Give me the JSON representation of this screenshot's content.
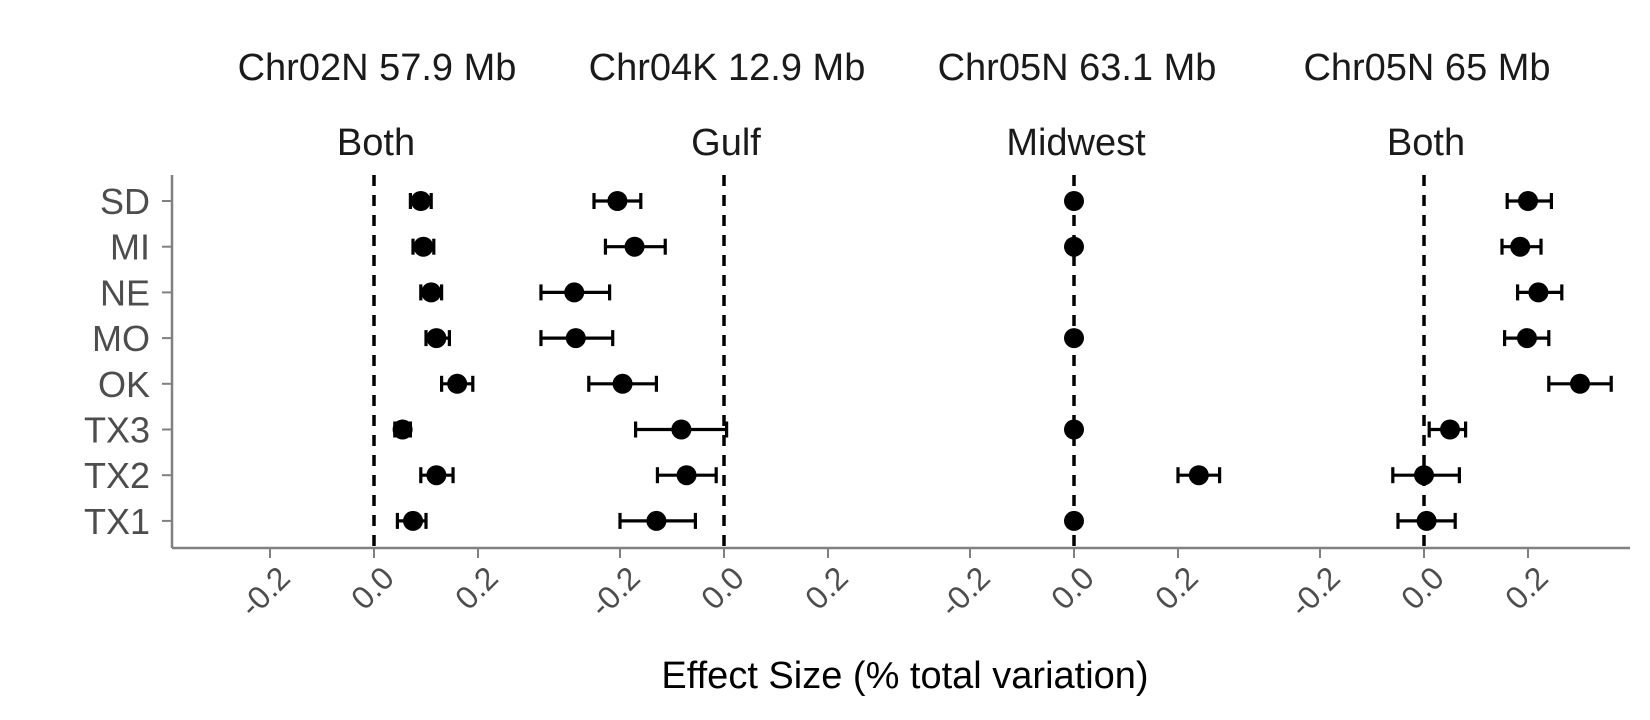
{
  "chart_data": {
    "type": "scatter",
    "subtype": "dot-and-errorbar facets",
    "xlabel": "Effect Size (% total variation)",
    "rows": [
      "SD",
      "MI",
      "NE",
      "MO",
      "OK",
      "TX3",
      "TX2",
      "TX1"
    ],
    "x_ticks": [
      -0.2,
      0.0,
      0.2
    ],
    "x_tick_labels": [
      "-0.2",
      "0.0",
      "0.2"
    ],
    "reference_line": 0.0,
    "grid": false,
    "colors": {
      "points": "#000000",
      "axis": "#808080",
      "text": "#1a1a1a",
      "row_labels": "#4d4d4d"
    },
    "facets": [
      {
        "title": "Chr02N 57.9 Mb",
        "group": "Both",
        "xlim": [
          -0.39,
          0.3
        ],
        "series": [
          {
            "row": "SD",
            "value": 0.09,
            "lo": 0.07,
            "hi": 0.11
          },
          {
            "row": "MI",
            "value": 0.095,
            "lo": 0.075,
            "hi": 0.115
          },
          {
            "row": "NE",
            "value": 0.11,
            "lo": 0.09,
            "hi": 0.13
          },
          {
            "row": "MO",
            "value": 0.12,
            "lo": 0.1,
            "hi": 0.145
          },
          {
            "row": "OK",
            "value": 0.16,
            "lo": 0.13,
            "hi": 0.19
          },
          {
            "row": "TX3",
            "value": 0.055,
            "lo": 0.04,
            "hi": 0.07
          },
          {
            "row": "TX2",
            "value": 0.12,
            "lo": 0.09,
            "hi": 0.152
          },
          {
            "row": "TX1",
            "value": 0.075,
            "lo": 0.045,
            "hi": 0.1
          }
        ]
      },
      {
        "title": "Chr04K 12.9 Mb",
        "group": "Gulf",
        "xlim": [
          -0.39,
          0.3
        ],
        "series": [
          {
            "row": "SD",
            "value": -0.205,
            "lo": -0.25,
            "hi": -0.16
          },
          {
            "row": "MI",
            "value": -0.172,
            "lo": -0.228,
            "hi": -0.113
          },
          {
            "row": "NE",
            "value": -0.288,
            "lo": -0.352,
            "hi": -0.22
          },
          {
            "row": "MO",
            "value": -0.285,
            "lo": -0.352,
            "hi": -0.214
          },
          {
            "row": "OK",
            "value": -0.195,
            "lo": -0.26,
            "hi": -0.13
          },
          {
            "row": "TX3",
            "value": -0.082,
            "lo": -0.17,
            "hi": 0.005
          },
          {
            "row": "TX2",
            "value": -0.072,
            "lo": -0.128,
            "hi": -0.015
          },
          {
            "row": "TX1",
            "value": -0.13,
            "lo": -0.2,
            "hi": -0.055
          }
        ]
      },
      {
        "title": "Chr05N 63.1 Mb",
        "group": "Midwest",
        "xlim": [
          -0.39,
          0.3
        ],
        "series": [
          {
            "row": "SD",
            "value": 0.0,
            "lo": 0.0,
            "hi": 0.0
          },
          {
            "row": "MI",
            "value": 0.0,
            "lo": 0.0,
            "hi": 0.0
          },
          {
            "row": "NE",
            "value": null,
            "lo": null,
            "hi": null
          },
          {
            "row": "MO",
            "value": 0.0,
            "lo": 0.0,
            "hi": 0.0
          },
          {
            "row": "OK",
            "value": null,
            "lo": null,
            "hi": null
          },
          {
            "row": "TX3",
            "value": 0.0,
            "lo": 0.0,
            "hi": 0.0
          },
          {
            "row": "TX2",
            "value": 0.24,
            "lo": 0.2,
            "hi": 0.28
          },
          {
            "row": "TX1",
            "value": 0.0,
            "lo": 0.0,
            "hi": 0.0
          }
        ]
      },
      {
        "title": "Chr05N 65 Mb",
        "group": "Both",
        "xlim": [
          -0.39,
          0.4
        ],
        "series": [
          {
            "row": "SD",
            "value": 0.2,
            "lo": 0.16,
            "hi": 0.245
          },
          {
            "row": "MI",
            "value": 0.185,
            "lo": 0.15,
            "hi": 0.225
          },
          {
            "row": "NE",
            "value": 0.22,
            "lo": 0.18,
            "hi": 0.265
          },
          {
            "row": "MO",
            "value": 0.198,
            "lo": 0.155,
            "hi": 0.24
          },
          {
            "row": "OK",
            "value": 0.3,
            "lo": 0.24,
            "hi": 0.36
          },
          {
            "row": "TX3",
            "value": 0.05,
            "lo": 0.01,
            "hi": 0.08
          },
          {
            "row": "TX2",
            "value": 0.0,
            "lo": -0.06,
            "hi": 0.068
          },
          {
            "row": "TX1",
            "value": 0.005,
            "lo": -0.05,
            "hi": 0.06
          }
        ]
      }
    ]
  }
}
